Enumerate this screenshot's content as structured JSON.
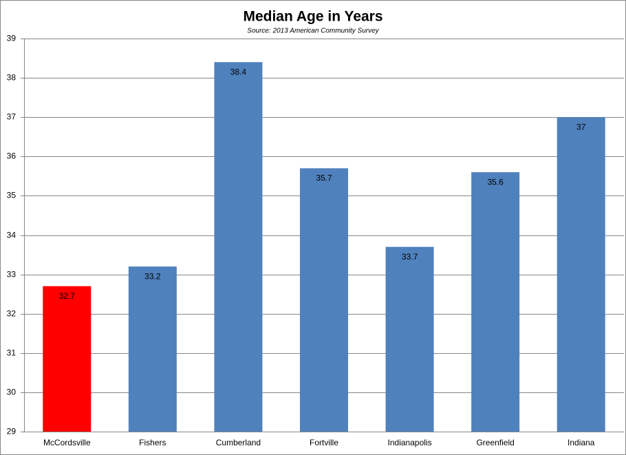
{
  "chart_data": {
    "type": "bar",
    "title": "Median Age in Years",
    "subtitle": "Source: 2013 American Community Survey",
    "categories": [
      "McCordsville",
      "Fishers",
      "Cumberland",
      "Fortville",
      "Indianapolis",
      "Greenfield",
      "Indiana"
    ],
    "values": [
      32.7,
      33.2,
      38.4,
      35.7,
      33.7,
      35.6,
      37
    ],
    "colors": [
      "#ff0000",
      "#4f81bd",
      "#4f81bd",
      "#4f81bd",
      "#4f81bd",
      "#4f81bd",
      "#4f81bd"
    ],
    "ylim": [
      29,
      39
    ],
    "yticks": [
      29,
      30,
      31,
      32,
      33,
      34,
      35,
      36,
      37,
      38,
      39
    ],
    "grid": true,
    "data_labels": true
  }
}
